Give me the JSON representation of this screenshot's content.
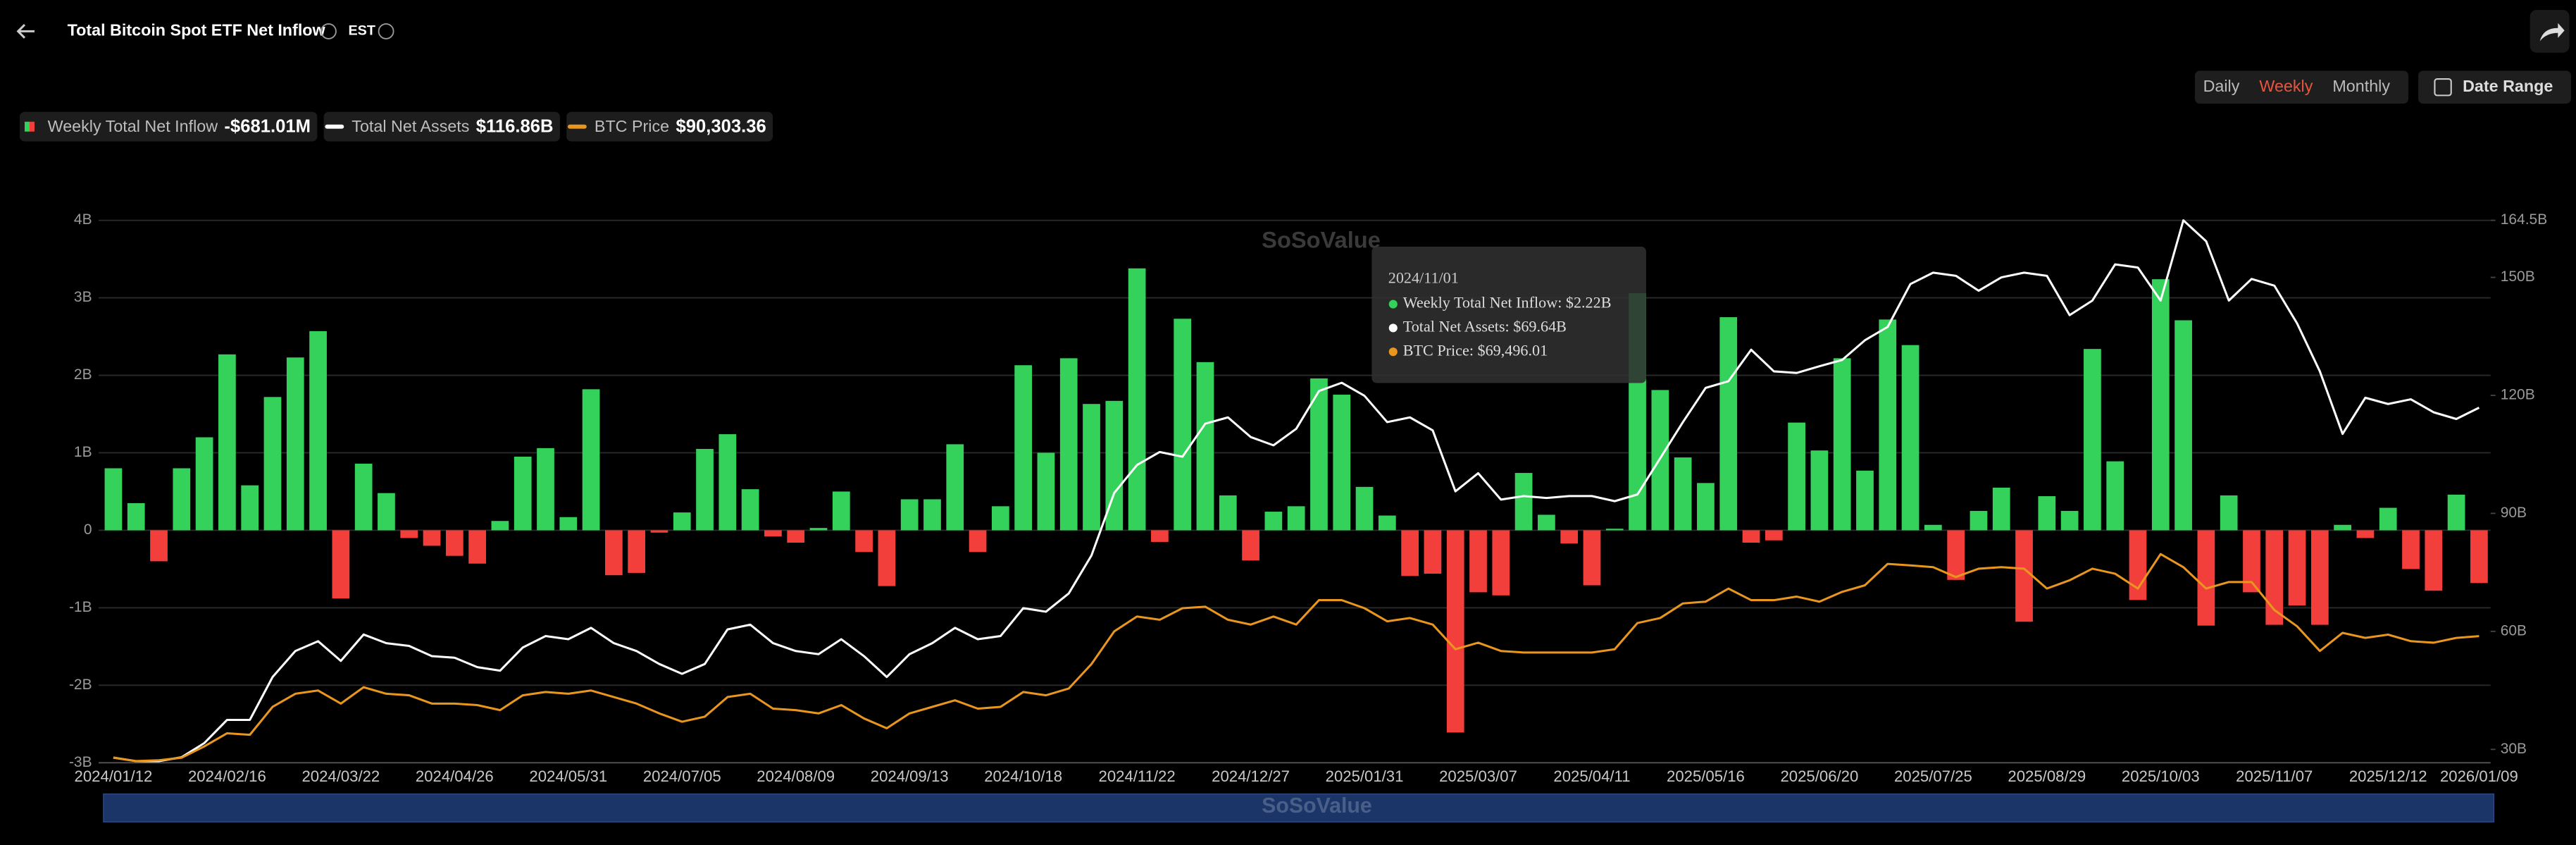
{
  "header": {
    "title": "Total Bitcoin Spot ETF Net Inflow",
    "timezone": "EST"
  },
  "controls": {
    "intervals": [
      "Daily",
      "Weekly",
      "Monthly"
    ],
    "active_interval": "Weekly",
    "date_range": "Date Range"
  },
  "watermark": "SoSoValue",
  "chart_data": {
    "type": "bar-line",
    "categories": [
      "2024/01/12",
      null,
      null,
      null,
      null,
      "2024/02/16",
      null,
      null,
      null,
      null,
      "2024/03/22",
      null,
      null,
      null,
      null,
      "2024/04/26",
      null,
      null,
      null,
      null,
      "2024/05/31",
      null,
      null,
      null,
      null,
      "2024/07/05",
      null,
      null,
      null,
      null,
      "2024/08/09",
      null,
      null,
      null,
      null,
      "2024/09/13",
      null,
      null,
      null,
      null,
      "2024/10/18",
      null,
      null,
      null,
      null,
      "2024/11/22",
      null,
      null,
      null,
      null,
      "2024/12/27",
      null,
      null,
      null,
      null,
      "2025/01/31",
      null,
      null,
      null,
      null,
      "2025/03/07",
      null,
      null,
      null,
      null,
      "2025/04/11",
      null,
      null,
      null,
      null,
      "2025/05/16",
      null,
      null,
      null,
      null,
      "2025/06/20",
      null,
      null,
      null,
      null,
      "2025/07/25",
      null,
      null,
      null,
      null,
      "2025/08/29",
      null,
      null,
      null,
      null,
      "2025/10/03",
      null,
      null,
      null,
      null,
      "2025/11/07",
      null,
      null,
      null,
      null,
      "2025/12/12",
      null,
      null,
      null,
      "2026/01/09"
    ],
    "series": [
      {
        "name": "Weekly Total Net Inflow",
        "legend_value": "-$681.01M",
        "type": "bar",
        "axis": "y",
        "color": "#34d25a",
        "negative_color": "#f23f3b",
        "values": [
          0.8,
          0.35,
          -0.4,
          0.8,
          1.2,
          2.27,
          0.58,
          1.72,
          2.23,
          2.57,
          -0.88,
          0.86,
          0.48,
          -0.1,
          -0.2,
          -0.33,
          -0.43,
          0.12,
          0.95,
          1.06,
          0.17,
          1.82,
          -0.58,
          -0.55,
          -0.03,
          0.23,
          1.05,
          1.24,
          0.53,
          -0.08,
          -0.16,
          0.03,
          0.5,
          -0.28,
          -0.72,
          0.4,
          0.4,
          1.11,
          -0.28,
          0.31,
          2.13,
          1.0,
          2.22,
          1.63,
          1.67,
          3.38,
          -0.15,
          2.73,
          2.17,
          0.45,
          -0.39,
          0.24,
          0.31,
          1.96,
          1.75,
          0.56,
          0.19,
          -0.59,
          -0.56,
          -2.61,
          -0.8,
          -0.84,
          0.74,
          0.2,
          -0.17,
          -0.71,
          0.02,
          3.06,
          1.81,
          0.94,
          0.61,
          2.75,
          -0.16,
          -0.13,
          1.39,
          1.03,
          2.22,
          0.77,
          2.72,
          2.39,
          0.07,
          -0.64,
          0.25,
          0.55,
          -1.18,
          0.44,
          0.25,
          2.34,
          0.89,
          -0.9,
          3.24,
          2.71,
          -1.23,
          0.45,
          -0.8,
          -1.22,
          -0.97,
          -1.22,
          0.07,
          -0.1,
          0.29,
          -0.5,
          -0.78,
          0.46,
          -0.68101
        ]
      },
      {
        "name": "Total Net Assets",
        "legend_value": "$116.86B",
        "type": "line",
        "axis": "y2",
        "color": "#ffffff",
        "values": [
          27.9,
          27,
          27,
          28,
          31.6,
          37.5,
          37.5,
          48.4,
          55,
          57.5,
          52.5,
          59.2,
          57,
          56.3,
          53.7,
          53.3,
          50.9,
          50,
          55.9,
          58.8,
          58,
          60.9,
          57,
          55,
          51.7,
          49.2,
          51.7,
          60.5,
          61.7,
          57,
          55,
          54.2,
          58,
          53.7,
          48.4,
          54.2,
          57,
          60.9,
          58,
          58.8,
          65.9,
          65,
          69.64,
          79.3,
          95.2,
          102.3,
          105.6,
          104.4,
          112.8,
          114.4,
          109.4,
          107.3,
          111.5,
          121.1,
          123.2,
          119.9,
          113.2,
          114.4,
          111.1,
          95.6,
          100.2,
          93.5,
          94.4,
          93.9,
          94.4,
          94.4,
          93.1,
          94.8,
          104,
          113.2,
          121.9,
          123.6,
          131.6,
          126.1,
          125.7,
          127.4,
          129,
          134,
          137.4,
          148.3,
          151.2,
          150.4,
          146.6,
          150,
          151.2,
          150.4,
          140.4,
          144.1,
          153.3,
          152.5,
          144.1,
          164.5,
          159.2,
          144.1,
          149.6,
          147.9,
          138.3,
          126.1,
          110.2,
          119.4,
          117.8,
          119,
          115.7,
          114,
          116.86
        ]
      },
      {
        "name": "BTC Price",
        "legend_value": "$90,303.36",
        "type": "line",
        "axis": "y3",
        "color": "#e8961e",
        "values": [
          42000,
          40650,
          41000,
          42000,
          46500,
          51700,
          51100,
          62200,
          67400,
          68700,
          63500,
          70000,
          67400,
          66800,
          63500,
          63500,
          62900,
          60900,
          66800,
          68100,
          67400,
          68700,
          66100,
          63500,
          59600,
          56300,
          58300,
          66100,
          67400,
          61500,
          60900,
          59600,
          62900,
          57600,
          53700,
          59600,
          62200,
          64800,
          61500,
          62200,
          68100,
          66800,
          69496.01,
          79200,
          92200,
          98100,
          96800,
          101400,
          102000,
          96800,
          94900,
          98100,
          94900,
          104600,
          104600,
          101400,
          96200,
          97500,
          94900,
          85100,
          87700,
          84400,
          83800,
          83800,
          83800,
          83800,
          85100,
          95500,
          97500,
          103300,
          104000,
          109200,
          104600,
          104600,
          106000,
          104000,
          107900,
          110500,
          119000,
          118400,
          117700,
          113800,
          117100,
          117700,
          117100,
          109200,
          112500,
          117100,
          115100,
          109200,
          122900,
          117700,
          109200,
          111800,
          111800,
          100700,
          94200,
          84400,
          91600,
          89600,
          90900,
          88300,
          87700,
          89600,
          90303.36
        ]
      }
    ],
    "ylim": [
      -3,
      4
    ],
    "yticks": [
      {
        "value": -3,
        "label": "-3B"
      },
      {
        "value": -2,
        "label": "-2B"
      },
      {
        "value": -1,
        "label": "-1B"
      },
      0,
      {
        "value": 1,
        "label": "1B"
      },
      {
        "value": 2,
        "label": "2B"
      },
      {
        "value": 3,
        "label": "3B"
      },
      {
        "value": 4,
        "label": "4B"
      }
    ],
    "y2lim": [
      26.6,
      164.5
    ],
    "y2ticks": [
      {
        "value": 30,
        "label": "30B"
      },
      {
        "value": 60,
        "label": "60B"
      },
      {
        "value": 90,
        "label": "90B"
      },
      {
        "value": 120,
        "label": "120B"
      },
      {
        "value": 150,
        "label": "150B"
      },
      {
        "value": 164.5,
        "label": "164.5B"
      }
    ],
    "y3lim": [
      40000,
      255500
    ],
    "grid": true,
    "tooltip": {
      "title": "2024/11/01",
      "items": [
        "Weekly Total Net Inflow: $2.22B",
        "Total Net Assets: $69.64B",
        "BTC Price: $69,496.01"
      ]
    }
  }
}
